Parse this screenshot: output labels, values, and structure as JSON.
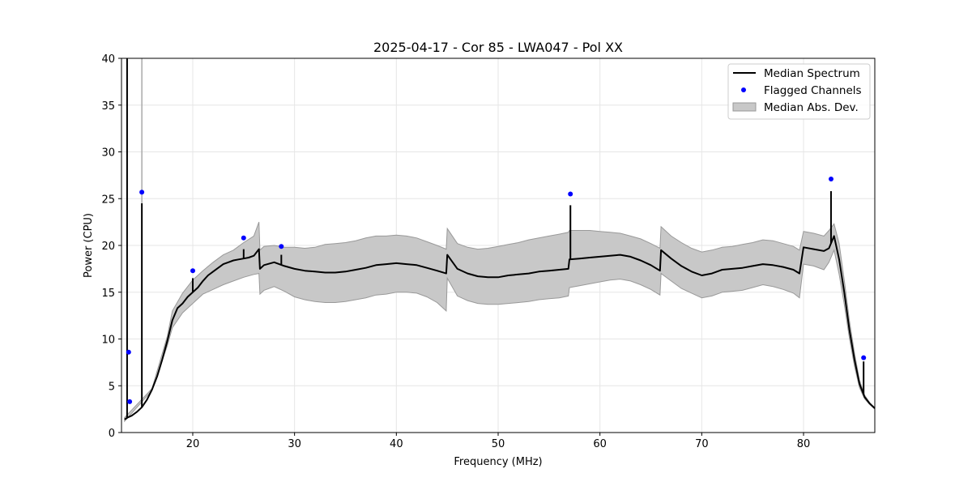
{
  "chart_data": {
    "type": "line",
    "title": "2025-04-17 - Cor 85 - LWA047 - Pol XX",
    "xlabel": "Frequency (MHz)",
    "ylabel": "Power (CPU)",
    "xlim": [
      13.0,
      87.0
    ],
    "ylim": [
      0,
      40
    ],
    "xticks": [
      20,
      30,
      40,
      50,
      60,
      70,
      80
    ],
    "yticks": [
      0,
      5,
      10,
      15,
      20,
      25,
      30,
      35,
      40
    ],
    "grid": true,
    "legend_position": "top-right",
    "legend": [
      {
        "label": "Median Spectrum",
        "kind": "line"
      },
      {
        "label": "Flagged Channels",
        "kind": "point"
      },
      {
        "label": "Median Abs. Dev.",
        "kind": "band"
      }
    ],
    "colors": {
      "median": "#000000",
      "flagged": "#0000ff",
      "band_fill": "#c8c8c8",
      "band_edge": "#999999",
      "grid": "#e6e6e6"
    },
    "series": [
      {
        "name": "Median Spectrum",
        "x": [
          13.3,
          13.6,
          14.0,
          14.5,
          15.0,
          15.5,
          16.0,
          16.5,
          17.0,
          17.5,
          18.0,
          18.5,
          19.0,
          19.5,
          20.0,
          20.5,
          21.0,
          21.5,
          22.0,
          22.5,
          23.0,
          23.5,
          24.0,
          24.5,
          25.0,
          25.5,
          26.0,
          26.5,
          26.6,
          27.0,
          28.0,
          29.0,
          30.0,
          31.0,
          32.0,
          33.0,
          34.0,
          35.0,
          36.0,
          37.0,
          38.0,
          39.0,
          40.0,
          41.0,
          42.0,
          43.0,
          44.0,
          44.9,
          45.0,
          46.0,
          47.0,
          48.0,
          49.0,
          50.0,
          51.0,
          52.0,
          53.0,
          54.0,
          55.0,
          56.0,
          56.9,
          57.0,
          58.0,
          59.0,
          60.0,
          61.0,
          62.0,
          63.0,
          64.0,
          65.0,
          65.9,
          66.0,
          67.0,
          68.0,
          69.0,
          70.0,
          71.0,
          72.0,
          73.0,
          74.0,
          75.0,
          76.0,
          77.0,
          78.0,
          79.0,
          79.6,
          80.0,
          81.0,
          82.0,
          82.5,
          83.0,
          83.5,
          84.0,
          84.5,
          85.0,
          85.5,
          86.0,
          86.5,
          87.0
        ],
        "y": [
          1.4,
          1.6,
          1.8,
          2.2,
          2.7,
          3.5,
          4.6,
          6.0,
          7.8,
          9.8,
          12.0,
          13.3,
          13.8,
          14.5,
          15.0,
          15.5,
          16.2,
          16.8,
          17.2,
          17.6,
          18.0,
          18.2,
          18.4,
          18.5,
          18.6,
          18.7,
          18.9,
          19.6,
          17.5,
          17.9,
          18.2,
          17.8,
          17.5,
          17.3,
          17.2,
          17.1,
          17.1,
          17.2,
          17.4,
          17.6,
          17.9,
          18.0,
          18.1,
          18.0,
          17.9,
          17.6,
          17.3,
          17.0,
          19.0,
          17.5,
          17.0,
          16.7,
          16.6,
          16.6,
          16.8,
          16.9,
          17.0,
          17.2,
          17.3,
          17.4,
          17.5,
          18.5,
          18.6,
          18.7,
          18.8,
          18.9,
          19.0,
          18.8,
          18.4,
          17.9,
          17.3,
          19.5,
          18.6,
          17.8,
          17.2,
          16.8,
          17.0,
          17.4,
          17.5,
          17.6,
          17.8,
          18.0,
          17.9,
          17.7,
          17.4,
          17.0,
          19.8,
          19.6,
          19.4,
          19.7,
          21.0,
          18.5,
          15.0,
          11.0,
          7.8,
          5.2,
          3.8,
          3.1,
          2.6
        ],
        "flagged_x": [
          13.7,
          13.8,
          15.0,
          20.0,
          25.0,
          28.7,
          57.1,
          82.7,
          85.9
        ],
        "flagged_y": [
          8.6,
          3.3,
          25.7,
          17.3,
          20.8,
          19.9,
          25.5,
          27.1,
          8.0
        ]
      },
      {
        "name": "Median Abs. Dev.",
        "x": [
          13.3,
          16.0,
          17.5,
          18.0,
          19.0,
          20.0,
          21.0,
          22.0,
          23.0,
          24.0,
          25.0,
          26.0,
          26.5,
          26.6,
          27.0,
          28.0,
          29.0,
          30.0,
          31.0,
          32.0,
          33.0,
          34.0,
          35.0,
          36.0,
          37.0,
          38.0,
          39.0,
          40.0,
          41.0,
          42.0,
          43.0,
          44.0,
          44.9,
          45.0,
          46.0,
          47.0,
          48.0,
          49.0,
          50.0,
          51.0,
          52.0,
          53.0,
          54.0,
          55.0,
          56.0,
          56.9,
          57.0,
          58.0,
          59.0,
          60.0,
          61.0,
          62.0,
          63.0,
          64.0,
          65.0,
          65.9,
          66.0,
          67.0,
          68.0,
          69.0,
          70.0,
          71.0,
          72.0,
          73.0,
          74.0,
          75.0,
          76.0,
          77.0,
          78.0,
          79.0,
          79.6,
          80.0,
          81.0,
          82.0,
          82.5,
          83.0,
          83.5,
          84.0,
          84.5,
          85.0,
          85.5,
          86.0,
          86.5,
          87.0
        ],
        "upper": [
          1.6,
          4.7,
          10.3,
          13.0,
          14.9,
          16.3,
          17.3,
          18.2,
          19.0,
          19.5,
          20.3,
          21.0,
          22.5,
          19.5,
          19.9,
          20.0,
          19.8,
          19.8,
          19.7,
          19.8,
          20.1,
          20.2,
          20.3,
          20.5,
          20.8,
          21.0,
          21.0,
          21.1,
          21.0,
          20.8,
          20.4,
          20.0,
          19.6,
          21.8,
          20.2,
          19.8,
          19.6,
          19.7,
          19.9,
          20.1,
          20.3,
          20.6,
          20.8,
          21.0,
          21.2,
          21.4,
          21.6,
          21.6,
          21.6,
          21.5,
          21.4,
          21.3,
          21.0,
          20.7,
          20.2,
          19.7,
          22.0,
          21.0,
          20.3,
          19.7,
          19.3,
          19.5,
          19.8,
          19.9,
          20.1,
          20.3,
          20.6,
          20.5,
          20.2,
          19.9,
          19.5,
          21.5,
          21.3,
          21.0,
          21.6,
          22.3,
          20.2,
          16.3,
          12.0,
          8.5,
          5.6,
          4.0,
          3.2,
          2.6
        ],
        "lower": [
          1.2,
          4.5,
          9.3,
          11.2,
          12.8,
          13.8,
          14.8,
          15.3,
          15.8,
          16.2,
          16.6,
          16.9,
          17.0,
          14.8,
          15.2,
          15.6,
          15.1,
          14.5,
          14.2,
          14.0,
          13.9,
          13.9,
          14.0,
          14.2,
          14.4,
          14.7,
          14.8,
          15.0,
          15.0,
          14.9,
          14.5,
          13.9,
          13.0,
          16.5,
          14.6,
          14.1,
          13.8,
          13.7,
          13.7,
          13.8,
          13.9,
          14.0,
          14.2,
          14.3,
          14.4,
          14.6,
          15.5,
          15.7,
          15.9,
          16.1,
          16.3,
          16.4,
          16.2,
          15.8,
          15.3,
          14.7,
          17.0,
          16.2,
          15.4,
          14.9,
          14.4,
          14.6,
          15.0,
          15.1,
          15.2,
          15.5,
          15.8,
          15.6,
          15.3,
          14.9,
          14.4,
          18.0,
          17.8,
          17.4,
          18.2,
          19.5,
          16.9,
          13.7,
          10.1,
          7.1,
          4.8,
          3.6,
          3.0,
          2.5
        ]
      }
    ],
    "spikes": [
      {
        "x": 13.55,
        "y": 40.0
      },
      {
        "x": 15.0,
        "y": 24.5
      },
      {
        "x": 20.0,
        "y": 16.5
      },
      {
        "x": 25.0,
        "y": 19.6
      },
      {
        "x": 28.7,
        "y": 19.0
      },
      {
        "x": 57.1,
        "y": 24.3
      },
      {
        "x": 82.7,
        "y": 25.8
      },
      {
        "x": 85.9,
        "y": 7.6
      }
    ]
  }
}
